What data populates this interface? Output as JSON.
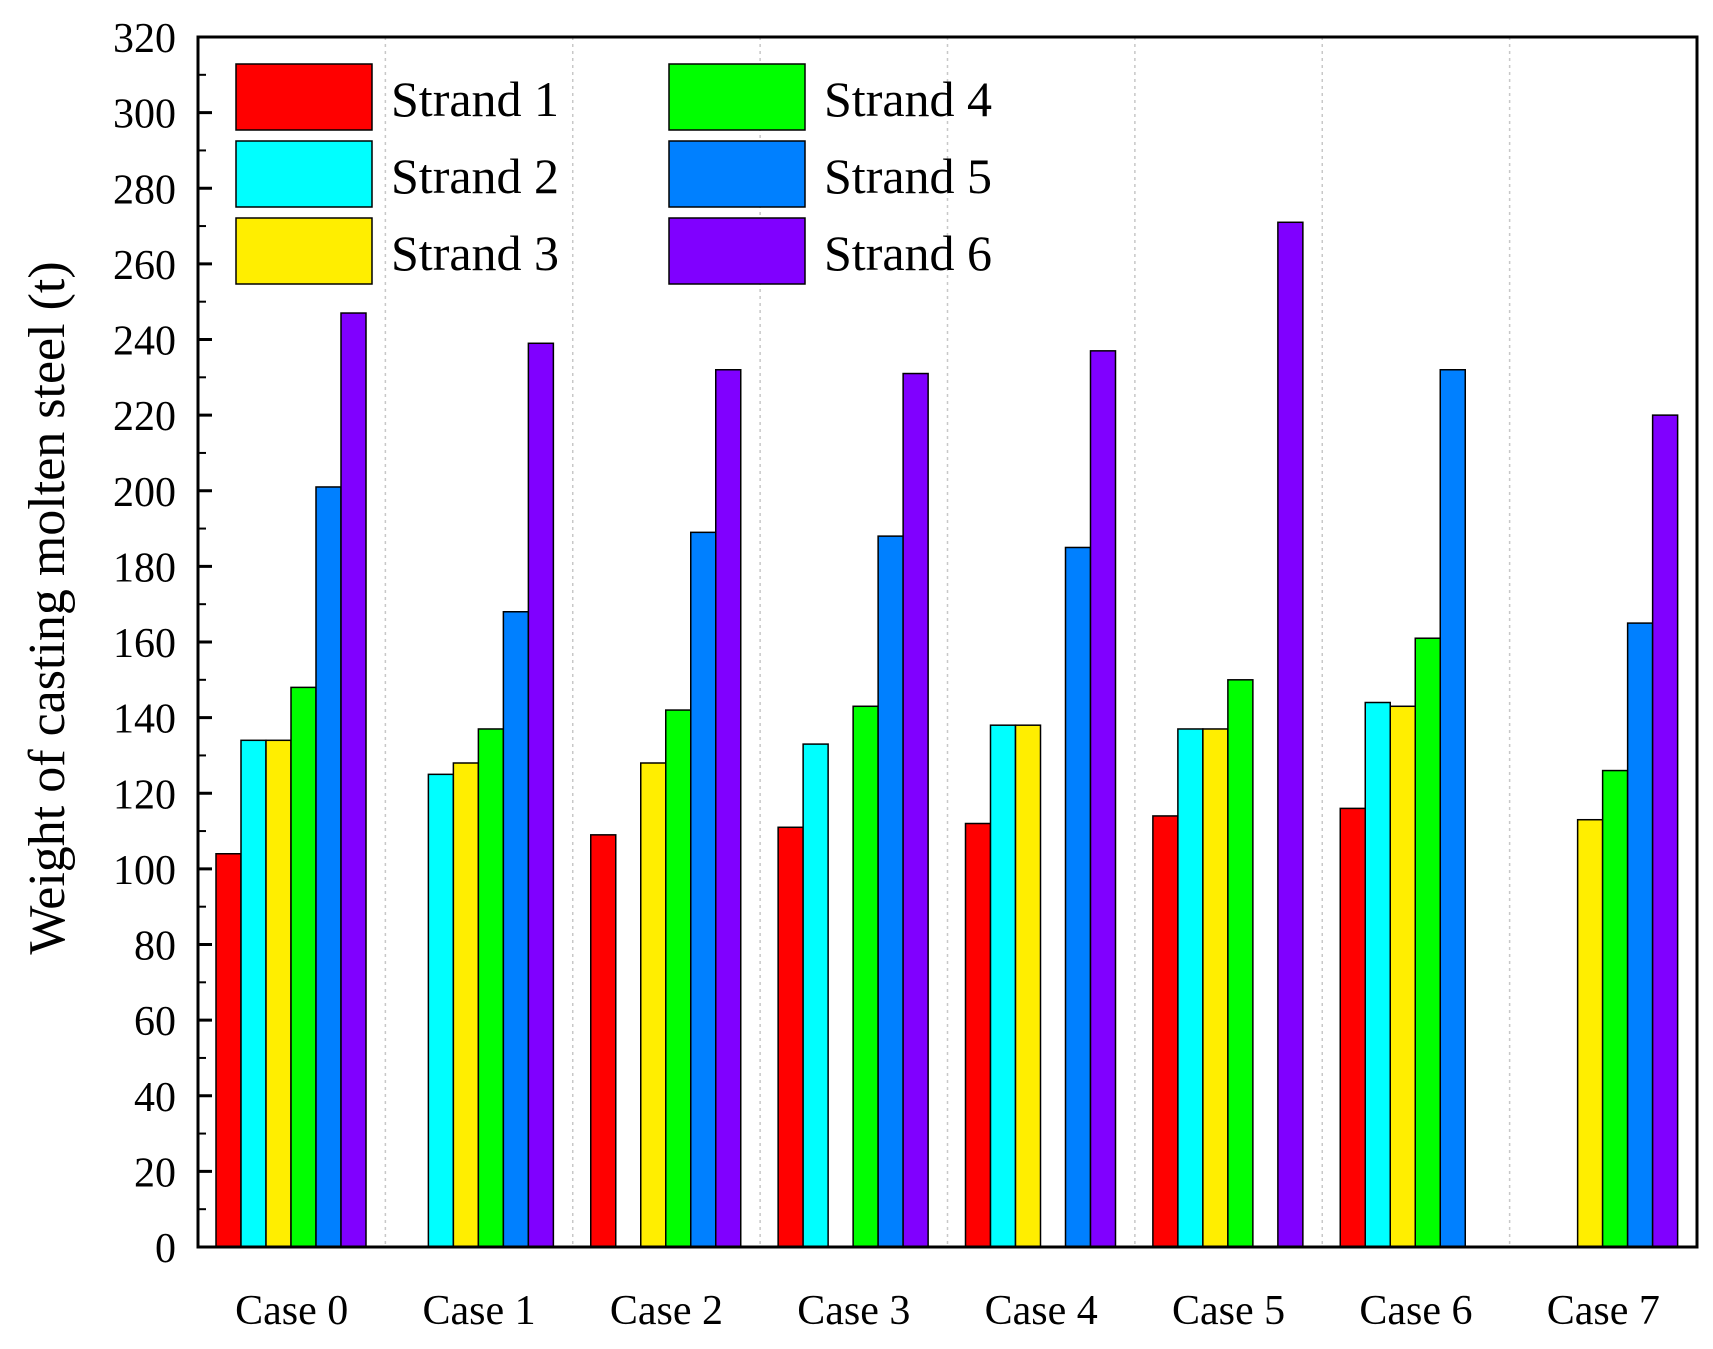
{
  "chart_data": {
    "type": "bar",
    "title": "",
    "xlabel": "",
    "ylabel": "Weight of casting molten steel (t)",
    "ylim": [
      0,
      320
    ],
    "yticks": [
      0,
      20,
      40,
      60,
      80,
      100,
      120,
      140,
      160,
      180,
      200,
      220,
      240,
      260,
      280,
      300,
      320
    ],
    "grid": "vertical dotted lines between categories",
    "legend_position": "top-left",
    "categories": [
      "Case 0",
      "Case 1",
      "Case 2",
      "Case 3",
      "Case 4",
      "Case 5",
      "Case 6",
      "Case 7"
    ],
    "series": [
      {
        "name": "Strand 1",
        "color": "#ff0000",
        "values": [
          104,
          null,
          109,
          111,
          112,
          114,
          116,
          null
        ]
      },
      {
        "name": "Strand 2",
        "color": "#00ffff",
        "values": [
          134,
          125,
          null,
          133,
          138,
          137,
          144,
          null
        ]
      },
      {
        "name": "Strand 3",
        "color": "#ffee00",
        "values": [
          134,
          128,
          128,
          null,
          138,
          137,
          143,
          113
        ]
      },
      {
        "name": "Strand 4",
        "color": "#00ff00",
        "values": [
          148,
          137,
          142,
          143,
          null,
          150,
          161,
          126
        ]
      },
      {
        "name": "Strand 5",
        "color": "#0080ff",
        "values": [
          201,
          168,
          189,
          188,
          185,
          null,
          232,
          165
        ]
      },
      {
        "name": "Strand 6",
        "color": "#8000ff",
        "values": [
          247,
          239,
          232,
          231,
          237,
          271,
          null,
          220
        ]
      }
    ]
  }
}
